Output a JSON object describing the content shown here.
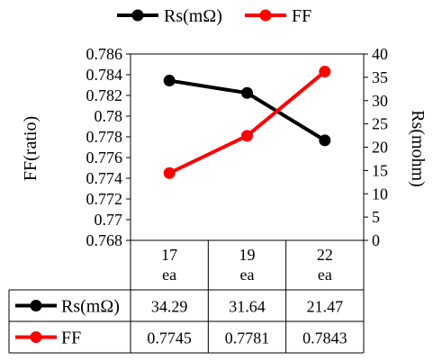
{
  "chart_data": {
    "type": "line",
    "categories": [
      "17\nea",
      "19\nea",
      "22\nea"
    ],
    "y_left": {
      "label": "FF(ratio)",
      "min": 0.768,
      "max": 0.786,
      "step": 0.002,
      "ticks": [
        "0.768",
        "0.77",
        "0.772",
        "0.774",
        "0.776",
        "0.778",
        "0.78",
        "0.782",
        "0.784",
        "0.786"
      ]
    },
    "y_right": {
      "label": "Rs(mohm)",
      "min": 0,
      "max": 40,
      "step": 5,
      "ticks": [
        "0",
        "5",
        "10",
        "15",
        "20",
        "25",
        "30",
        "35",
        "40"
      ]
    },
    "grid": false,
    "legend_position": "top",
    "series": [
      {
        "name": "Rs(mΩ)",
        "axis": "right",
        "color": "#000000",
        "values": [
          34.29,
          31.64,
          21.47
        ],
        "display": [
          "34.29",
          "31.64",
          "21.47"
        ]
      },
      {
        "name": "FF",
        "axis": "left",
        "color": "#ff0000",
        "values": [
          0.7745,
          0.7781,
          0.7843
        ],
        "display": [
          "0.7745",
          "0.7781",
          "0.7843"
        ]
      }
    ]
  }
}
